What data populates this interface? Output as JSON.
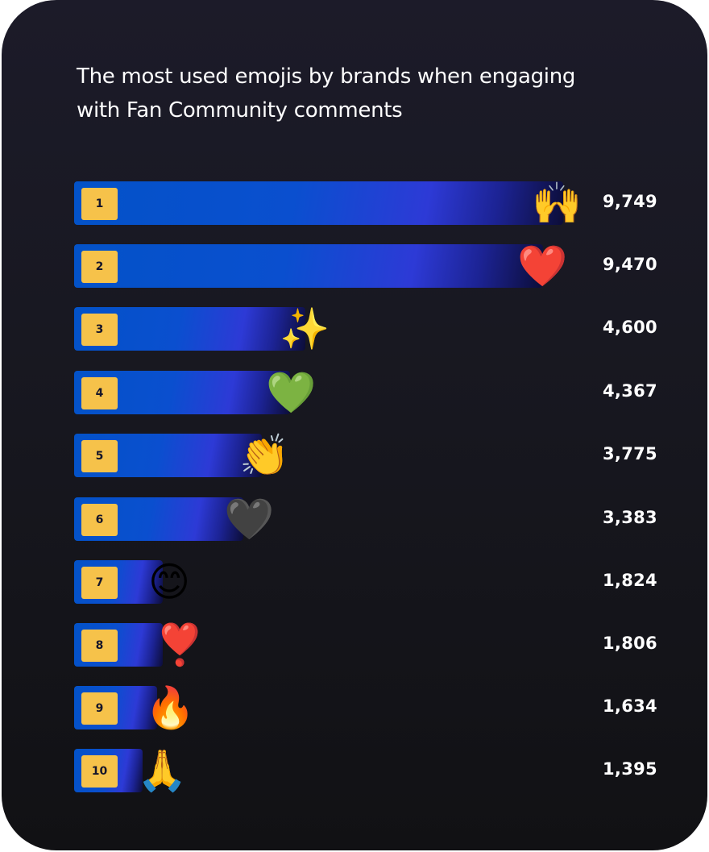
{
  "title": "The most used emojis by brands when engaging with Fan Community comments",
  "colors": {
    "background_top": "#1c1b29",
    "background_bottom": "#111114",
    "bar_start": "#0352c8",
    "bar_mid": "#2d3ad6",
    "bar_end": "#0c0d38",
    "rank_badge": "#f6c24a",
    "text": "#ffffff"
  },
  "rows": [
    {
      "rank": "1",
      "emoji": "🙌",
      "emoji_name": "raising-hands-icon",
      "value": "9,749"
    },
    {
      "rank": "2",
      "emoji": "❤️",
      "emoji_name": "red-heart-icon",
      "value": "9,470"
    },
    {
      "rank": "3",
      "emoji": "✨",
      "emoji_name": "sparkles-icon",
      "value": "4,600"
    },
    {
      "rank": "4",
      "emoji": "💚",
      "emoji_name": "green-heart-icon",
      "value": "4,367"
    },
    {
      "rank": "5",
      "emoji": "👏",
      "emoji_name": "clapping-hands-icon",
      "value": "3,775"
    },
    {
      "rank": "6",
      "emoji": "🖤",
      "emoji_name": "black-heart-icon",
      "value": "3,383"
    },
    {
      "rank": "7",
      "emoji": "😊",
      "emoji_name": "smiling-face-icon",
      "value": "1,824"
    },
    {
      "rank": "8",
      "emoji": "❣️",
      "emoji_name": "heart-exclamation-icon",
      "value": "1,806"
    },
    {
      "rank": "9",
      "emoji": "🔥",
      "emoji_name": "fire-icon",
      "value": "1,634"
    },
    {
      "rank": "10",
      "emoji": "🙏",
      "emoji_name": "folded-hands-icon",
      "value": "1,395"
    }
  ],
  "chart_data": {
    "type": "bar",
    "orientation": "horizontal",
    "title": "The most used emojis by brands when engaging with Fan Community comments",
    "categories": [
      "🙌 raising hands",
      "❤️ red heart",
      "✨ sparkles",
      "💚 green heart",
      "👏 clapping hands",
      "🖤 black heart",
      "😊 smiling face",
      "❣️ heart exclamation",
      "🔥 fire",
      "🙏 folded hands"
    ],
    "ranks": [
      1,
      2,
      3,
      4,
      5,
      6,
      7,
      8,
      9,
      10
    ],
    "values": [
      9749,
      9470,
      4600,
      4367,
      3775,
      3383,
      1824,
      1806,
      1634,
      1395
    ],
    "xlabel": "",
    "ylabel": "",
    "grid": false,
    "legend": null,
    "data_labels": true
  }
}
